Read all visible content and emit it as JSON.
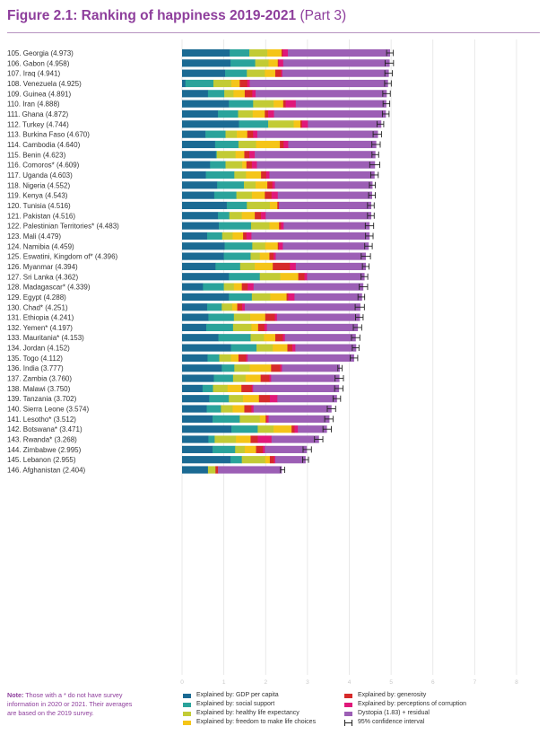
{
  "title": {
    "main": "Figure 2.1: Ranking of happiness 2019-2021",
    "part": "(Part 3)"
  },
  "note": {
    "heading": "Note:",
    "text": "Those with a * do not have survey information in 2020 or 2021. Their averages are based on the 2019 survey."
  },
  "colors": {
    "gdp": "#1b6a93",
    "social": "#2aa39b",
    "health": "#c2cb35",
    "freedom": "#f5c518",
    "generosity": "#d62a2a",
    "corruption": "#e0187a",
    "dystopia": "#9c5fb5",
    "ci": "#222222",
    "title": "#8e3e9c"
  },
  "legend": [
    {
      "key": "gdp",
      "label": "Explained by: GDP per capita"
    },
    {
      "key": "social",
      "label": "Explained by: social support"
    },
    {
      "key": "health",
      "label": "Explained by: healthy life expectancy"
    },
    {
      "key": "freedom",
      "label": "Explained by: freedom to make life choices"
    },
    {
      "key": "generosity",
      "label": "Explained by: generosity"
    },
    {
      "key": "corruption",
      "label": "Explained by: perceptions of corruption"
    },
    {
      "key": "dystopia",
      "label": "Dystopia (1.83) + residual"
    },
    {
      "key": "ci",
      "label": "95% confidence interval"
    }
  ],
  "chart_data": {
    "type": "bar",
    "orientation": "horizontal",
    "stacked": true,
    "xlim": [
      0,
      8
    ],
    "x_ticks": [
      0,
      1,
      2,
      3,
      4,
      5,
      6,
      7,
      8
    ],
    "grid": true,
    "series_order": [
      "gdp",
      "social",
      "health",
      "freedom",
      "generosity",
      "corruption",
      "dystopia"
    ],
    "rows": [
      {
        "label": "105. Georgia (4.973)",
        "score": 4.973,
        "ci": 0.08,
        "seg": [
          1.14,
          0.47,
          0.43,
          0.34,
          0.03,
          0.12,
          2.44
        ]
      },
      {
        "label": "106. Gabon (4.958)",
        "score": 4.958,
        "ci": 0.1,
        "seg": [
          1.16,
          0.59,
          0.32,
          0.22,
          0.02,
          0.11,
          2.54
        ]
      },
      {
        "label": "107. Iraq (4.941)",
        "score": 4.941,
        "ci": 0.09,
        "seg": [
          1.03,
          0.52,
          0.43,
          0.25,
          0.14,
          0.03,
          2.54
        ]
      },
      {
        "label": "108. Venezuela (4.925)",
        "score": 4.925,
        "ci": 0.08,
        "seg": [
          0.08,
          0.67,
          0.43,
          0.2,
          0.18,
          0.06,
          3.3
        ]
      },
      {
        "label": "109. Guinea (4.891)",
        "score": 4.891,
        "ci": 0.09,
        "seg": [
          0.62,
          0.39,
          0.22,
          0.27,
          0.18,
          0.08,
          3.13
        ]
      },
      {
        "label": "110. Iran (4.888)",
        "score": 4.888,
        "ci": 0.08,
        "seg": [
          1.12,
          0.58,
          0.49,
          0.23,
          0.06,
          0.24,
          2.16
        ]
      },
      {
        "label": "111. Ghana (4.872)",
        "score": 4.872,
        "ci": 0.08,
        "seg": [
          0.86,
          0.48,
          0.35,
          0.29,
          0.08,
          0.14,
          2.67
        ]
      },
      {
        "label": "112. Turkey (4.744)",
        "score": 4.744,
        "ci": 0.08,
        "seg": [
          1.36,
          0.7,
          0.61,
          0.16,
          0.04,
          0.14,
          1.75
        ]
      },
      {
        "label": "113. Burkina Faso (4.670)",
        "score": 4.67,
        "ci": 0.1,
        "seg": [
          0.56,
          0.48,
          0.27,
          0.25,
          0.14,
          0.1,
          2.88
        ]
      },
      {
        "label": "114. Cambodia (4.640)",
        "score": 4.64,
        "ci": 0.1,
        "seg": [
          0.79,
          0.56,
          0.42,
          0.57,
          0.09,
          0.11,
          2.1
        ]
      },
      {
        "label": "115. Benin (4.623)",
        "score": 4.623,
        "ci": 0.08,
        "seg": [
          0.81,
          0.02,
          0.45,
          0.21,
          0.12,
          0.13,
          2.88
        ]
      },
      {
        "label": "116. Comoros* (4.609)",
        "score": 4.609,
        "ci": 0.12,
        "seg": [
          0.67,
          0.37,
          0.4,
          0.1,
          0.13,
          0.12,
          2.82
        ]
      },
      {
        "label": "117. Uganda (4.603)",
        "score": 4.603,
        "ci": 0.09,
        "seg": [
          0.57,
          0.68,
          0.28,
          0.36,
          0.12,
          0.08,
          2.51
        ]
      },
      {
        "label": "118. Nigeria (4.552)",
        "score": 4.552,
        "ci": 0.07,
        "seg": [
          0.84,
          0.64,
          0.28,
          0.28,
          0.12,
          0.06,
          2.33
        ]
      },
      {
        "label": "119. Kenya (4.543)",
        "score": 4.543,
        "ci": 0.08,
        "seg": [
          0.77,
          0.53,
          0.37,
          0.31,
          0.16,
          0.15,
          2.25
        ]
      },
      {
        "label": "120. Tunisia (4.516)",
        "score": 4.516,
        "ci": 0.08,
        "seg": [
          1.07,
          0.48,
          0.55,
          0.18,
          0.03,
          0.01,
          2.2
        ]
      },
      {
        "label": "121. Pakistan (4.516)",
        "score": 4.516,
        "ci": 0.08,
        "seg": [
          0.86,
          0.27,
          0.3,
          0.31,
          0.15,
          0.11,
          2.52
        ]
      },
      {
        "label": "122. Palestinian Territories* (4.483)",
        "score": 4.483,
        "ci": 0.1,
        "seg": [
          0.88,
          0.77,
          0.44,
          0.23,
          0.05,
          0.06,
          2.05
        ]
      },
      {
        "label": "123. Mali (4.479)",
        "score": 4.479,
        "ci": 0.09,
        "seg": [
          0.6,
          0.36,
          0.25,
          0.25,
          0.08,
          0.12,
          2.82
        ]
      },
      {
        "label": "124. Namibia (4.459)",
        "score": 4.459,
        "ci": 0.09,
        "seg": [
          1.02,
          0.66,
          0.31,
          0.3,
          0.03,
          0.09,
          2.05
        ]
      },
      {
        "label": "125. Eswatini, Kingdom of* (4.396)",
        "score": 4.396,
        "ci": 0.11,
        "seg": [
          1.0,
          0.64,
          0.22,
          0.23,
          0.1,
          0.05,
          2.15
        ]
      },
      {
        "label": "126. Myanmar (4.394)",
        "score": 4.394,
        "ci": 0.08,
        "seg": [
          0.8,
          0.59,
          0.35,
          0.43,
          0.41,
          0.14,
          1.67
        ]
      },
      {
        "label": "127. Sri Lanka (4.362)",
        "score": 4.362,
        "ci": 0.08,
        "seg": [
          1.12,
          0.74,
          0.49,
          0.43,
          0.15,
          0.06,
          1.37
        ]
      },
      {
        "label": "128. Madagascar* (4.339)",
        "score": 4.339,
        "ci": 0.1,
        "seg": [
          0.5,
          0.5,
          0.24,
          0.19,
          0.14,
          0.14,
          2.62
        ]
      },
      {
        "label": "129. Egypt (4.288)",
        "score": 4.288,
        "ci": 0.08,
        "seg": [
          1.12,
          0.55,
          0.44,
          0.39,
          0.04,
          0.15,
          1.61
        ]
      },
      {
        "label": "130. Chad* (4.251)",
        "score": 4.251,
        "ci": 0.11,
        "seg": [
          0.6,
          0.35,
          0.25,
          0.12,
          0.12,
          0.06,
          2.76
        ]
      },
      {
        "label": "131. Ethiopia (4.241)",
        "score": 4.241,
        "ci": 0.09,
        "seg": [
          0.63,
          0.61,
          0.39,
          0.36,
          0.23,
          0.05,
          1.98
        ]
      },
      {
        "label": "132. Yemen* (4.197)",
        "score": 4.197,
        "ci": 0.1,
        "seg": [
          0.58,
          0.64,
          0.44,
          0.16,
          0.15,
          0.06,
          2.17
        ]
      },
      {
        "label": "133. Mauritania* (4.153)",
        "score": 4.153,
        "ci": 0.1,
        "seg": [
          0.87,
          0.77,
          0.32,
          0.27,
          0.18,
          0.05,
          1.69
        ]
      },
      {
        "label": "134. Jordan (4.152)",
        "score": 4.152,
        "ci": 0.08,
        "seg": [
          1.17,
          0.61,
          0.39,
          0.35,
          0.12,
          0.07,
          1.45
        ]
      },
      {
        "label": "135. Togo (4.112)",
        "score": 4.112,
        "ci": 0.09,
        "seg": [
          0.61,
          0.28,
          0.28,
          0.18,
          0.18,
          0.04,
          2.54
        ]
      },
      {
        "label": "136. India (3.777)",
        "score": 3.777,
        "ci": 0.05,
        "seg": [
          0.95,
          0.3,
          0.37,
          0.51,
          0.22,
          0.04,
          1.38
        ]
      },
      {
        "label": "137. Zambia (3.760)",
        "score": 3.76,
        "ci": 0.1,
        "seg": [
          0.76,
          0.46,
          0.3,
          0.36,
          0.21,
          0.04,
          1.63
        ]
      },
      {
        "label": "138. Malawi (3.750)",
        "score": 3.75,
        "ci": 0.1,
        "seg": [
          0.49,
          0.25,
          0.35,
          0.33,
          0.25,
          0.03,
          2.05
        ]
      },
      {
        "label": "139. Tanzania (3.702)",
        "score": 3.702,
        "ci": 0.09,
        "seg": [
          0.65,
          0.47,
          0.34,
          0.38,
          0.26,
          0.18,
          1.42
        ]
      },
      {
        "label": "140. Sierra Leone (3.574)",
        "score": 3.574,
        "ci": 0.1,
        "seg": [
          0.59,
          0.34,
          0.28,
          0.28,
          0.17,
          0.05,
          1.86
        ]
      },
      {
        "label": "141. Lesotho* (3.512)",
        "score": 3.512,
        "ci": 0.1,
        "seg": [
          0.73,
          0.65,
          0.48,
          0.14,
          0.03,
          0.04,
          1.45
        ]
      },
      {
        "label": "142. Botswana* (3.471)",
        "score": 3.471,
        "ci": 0.1,
        "seg": [
          1.18,
          0.63,
          0.38,
          0.43,
          0.07,
          0.08,
          0.69
        ]
      },
      {
        "label": "143. Rwanda* (3.268)",
        "score": 3.268,
        "ci": 0.1,
        "seg": [
          0.63,
          0.15,
          0.51,
          0.35,
          0.17,
          0.33,
          1.13
        ]
      },
      {
        "label": "144. Zimbabwe (2.995)",
        "score": 2.995,
        "ci": 0.1,
        "seg": [
          0.73,
          0.54,
          0.23,
          0.27,
          0.16,
          0.05,
          1.0
        ]
      },
      {
        "label": "145. Lebanon (2.955)",
        "score": 2.955,
        "ci": 0.07,
        "seg": [
          1.16,
          0.27,
          0.56,
          0.11,
          0.1,
          0.03,
          0.72
        ]
      },
      {
        "label": "146. Afghanistan (2.404)",
        "score": 2.404,
        "ci": 0.05,
        "seg": [
          0.62,
          0.0,
          0.18,
          0.0,
          0.06,
          0.0,
          1.52
        ]
      }
    ]
  }
}
